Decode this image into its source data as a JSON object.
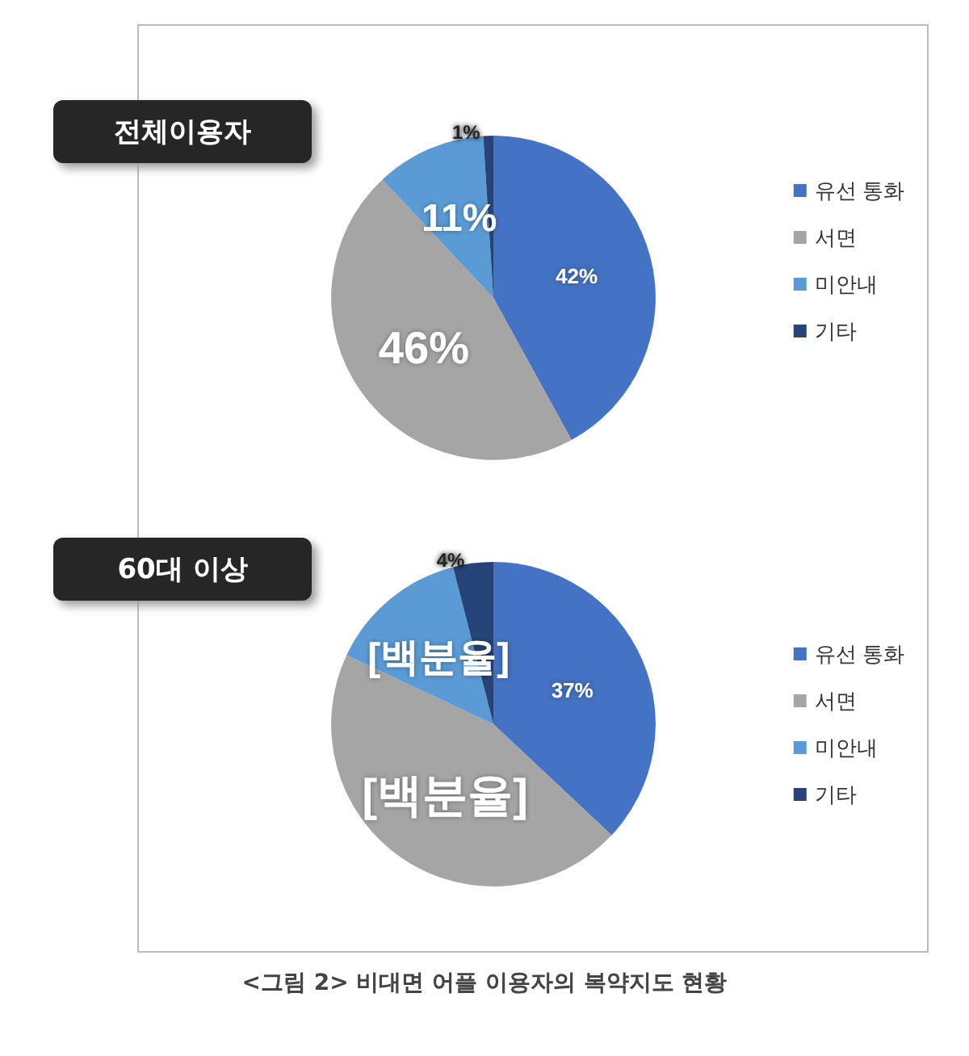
{
  "chart_data": [
    {
      "type": "pie",
      "title": "전체이용자",
      "categories": [
        "유선 통화",
        "서면",
        "미안내",
        "기타"
      ],
      "values": [
        42,
        46,
        11,
        1
      ],
      "colors": [
        "#4472c4",
        "#a5a5a5",
        "#5b9bd5",
        "#264478"
      ],
      "value_labels": [
        "42%",
        "46%",
        "11%",
        "1%"
      ],
      "legend": "right"
    },
    {
      "type": "pie",
      "title": "60대 이상",
      "categories": [
        "유선 통화",
        "서면",
        "미안내",
        "기타"
      ],
      "values": [
        37,
        45,
        14,
        4
      ],
      "colors": [
        "#4472c4",
        "#a5a5a5",
        "#5b9bd5",
        "#264478"
      ],
      "value_labels": [
        "37%",
        "[백분율]",
        "[백분율]",
        "4%"
      ],
      "legend": "right",
      "annotations": [
        "<그림 2> 비대면 어플 이용자의 복약지도 현황"
      ]
    }
  ]
}
